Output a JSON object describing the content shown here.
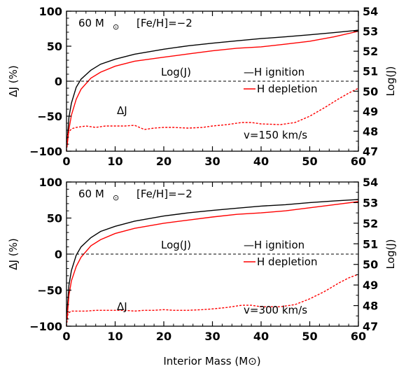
{
  "chart_data": [
    {
      "type": "line",
      "title": "60 M⊙   [Fe/H]=−2",
      "title_parts": {
        "mass": "60 M",
        "sun": "⊙",
        "metal": "[Fe/H]=−2"
      },
      "xlabel": "",
      "ylabel": "ΔJ (%)",
      "y2label": "Log(J)",
      "xlim": [
        0,
        60
      ],
      "ylim": [
        -100,
        100
      ],
      "y2lim": [
        47,
        54
      ],
      "xticks": [
        0,
        10,
        20,
        30,
        40,
        50,
        60
      ],
      "yticks": [
        -100,
        -50,
        0,
        50,
        100
      ],
      "y2ticks": [
        47,
        48,
        49,
        50,
        51,
        52,
        53,
        54
      ],
      "annotations": {
        "logj": "Log(J)",
        "dj": "ΔJ",
        "velocity": "v=150 km/s"
      },
      "legend": {
        "position": "center-right",
        "entries": [
          {
            "label": "—H ignition",
            "color": "#000000",
            "dash": "solid"
          },
          {
            "label": "H depletion",
            "color": "#ff0000",
            "dash": "solid"
          }
        ]
      },
      "series": [
        {
          "name": "H ignition",
          "axis": "right",
          "color": "#000000",
          "dash": "solid",
          "x": [
            0.1,
            0.5,
            1,
            2,
            3,
            5,
            7,
            10,
            14,
            20,
            25,
            30,
            35,
            40,
            45,
            50,
            55,
            60
          ],
          "y": [
            47.4,
            48.7,
            49.4,
            50.2,
            50.6,
            51.05,
            51.35,
            51.6,
            51.85,
            52.1,
            52.27,
            52.4,
            52.52,
            52.63,
            52.72,
            52.82,
            52.93,
            53.05
          ]
        },
        {
          "name": "H depletion",
          "axis": "right",
          "color": "#ff0000",
          "dash": "solid",
          "x": [
            0.1,
            0.5,
            1,
            2,
            3,
            5,
            7,
            10,
            14,
            20,
            25,
            30,
            35,
            40,
            45,
            50,
            55,
            60
          ],
          "y": [
            47.2,
            48.1,
            48.8,
            49.6,
            50.1,
            50.65,
            50.95,
            51.25,
            51.5,
            51.7,
            51.86,
            52.02,
            52.15,
            52.22,
            52.35,
            52.5,
            52.72,
            53.0
          ]
        },
        {
          "name": "ΔJ",
          "axis": "left",
          "color": "#ff0000",
          "dash": "dashed",
          "x": [
            0,
            0.3,
            1,
            2,
            4,
            6,
            8,
            10,
            12,
            14,
            16,
            18,
            20,
            22,
            25,
            28,
            30,
            33,
            36,
            38,
            40,
            44,
            47,
            50,
            53,
            56,
            58,
            60
          ],
          "y": [
            -100,
            -75,
            -68,
            -66,
            -64,
            -66,
            -64,
            -64,
            -64,
            -63,
            -69,
            -67,
            -66,
            -66,
            -67,
            -66,
            -64,
            -62,
            -59,
            -59,
            -61,
            -62,
            -59,
            -50,
            -38,
            -25,
            -17,
            -10
          ]
        },
        {
          "name": "zero",
          "axis": "left",
          "color": "#000000",
          "dash": "dashed",
          "x": [
            0,
            60
          ],
          "y": [
            0,
            0
          ]
        }
      ]
    },
    {
      "type": "line",
      "title": "60 M⊙   [Fe/H]=−2",
      "title_parts": {
        "mass": "60 M",
        "sun": "⊙",
        "metal": "[Fe/H]=−2"
      },
      "xlabel": "Interior Mass (M⊙)",
      "ylabel": "ΔJ (%)",
      "y2label": "Log(J)",
      "xlim": [
        0,
        60
      ],
      "ylim": [
        -100,
        100
      ],
      "y2lim": [
        47,
        54
      ],
      "xticks": [
        0,
        10,
        20,
        30,
        40,
        50,
        60
      ],
      "yticks": [
        -100,
        -50,
        0,
        50,
        100
      ],
      "y2ticks": [
        47,
        48,
        49,
        50,
        51,
        52,
        53,
        54
      ],
      "annotations": {
        "logj": "Log(J)",
        "dj": "ΔJ",
        "velocity": "v=300 km/s"
      },
      "legend": {
        "position": "center-right",
        "entries": [
          {
            "label": "—H ignition",
            "color": "#000000",
            "dash": "solid"
          },
          {
            "label": "H depletion",
            "color": "#ff0000",
            "dash": "solid"
          }
        ]
      },
      "series": [
        {
          "name": "H ignition",
          "axis": "right",
          "color": "#000000",
          "dash": "solid",
          "x": [
            0.1,
            0.5,
            1,
            2,
            3,
            5,
            7,
            10,
            14,
            20,
            25,
            30,
            35,
            40,
            45,
            50,
            55,
            60
          ],
          "y": [
            47.6,
            49.0,
            49.7,
            50.45,
            50.85,
            51.3,
            51.6,
            51.85,
            52.1,
            52.35,
            52.5,
            52.62,
            52.73,
            52.83,
            52.9,
            53.0,
            53.08,
            53.15
          ]
        },
        {
          "name": "H depletion",
          "axis": "right",
          "color": "#ff0000",
          "dash": "solid",
          "x": [
            0.1,
            0.5,
            1,
            2,
            3,
            5,
            7,
            10,
            14,
            20,
            25,
            30,
            35,
            40,
            45,
            50,
            55,
            60
          ],
          "y": [
            47.3,
            48.5,
            49.2,
            49.9,
            50.35,
            50.9,
            51.2,
            51.5,
            51.75,
            52.0,
            52.15,
            52.3,
            52.43,
            52.5,
            52.6,
            52.75,
            52.9,
            53.05
          ]
        },
        {
          "name": "ΔJ",
          "axis": "left",
          "color": "#ff0000",
          "dash": "dashed",
          "x": [
            0,
            0.3,
            1,
            2,
            4,
            6,
            8,
            10,
            12,
            14,
            16,
            18,
            20,
            22,
            25,
            28,
            30,
            33,
            36,
            38,
            40,
            44,
            47,
            50,
            53,
            56,
            58,
            60
          ],
          "y": [
            -100,
            -82,
            -79,
            -79,
            -79,
            -78,
            -78,
            -78,
            -78,
            -79,
            -78,
            -78,
            -77,
            -78,
            -78,
            -77,
            -76,
            -74,
            -71,
            -71,
            -73,
            -73,
            -70,
            -62,
            -52,
            -40,
            -33,
            -28
          ]
        },
        {
          "name": "zero",
          "axis": "left",
          "color": "#000000",
          "dash": "dashed",
          "x": [
            0,
            60
          ],
          "y": [
            0,
            0
          ]
        }
      ]
    }
  ]
}
